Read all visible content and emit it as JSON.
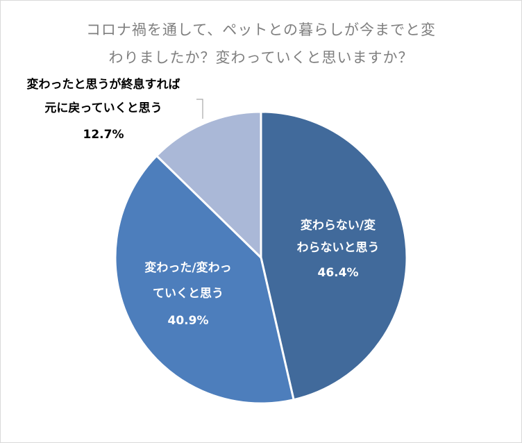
{
  "chart_data": {
    "type": "pie",
    "title_lines": [
      "コロナ禍を通して、ペットとの暮らしが今までと変",
      "わりましたか？変わっていくと思いますか？"
    ],
    "slices": [
      {
        "label_lines": [
          "変わらない/変",
          "わらないと思う"
        ],
        "value": 46.4,
        "value_label": "46.4%",
        "color": "#416a9b"
      },
      {
        "label_lines": [
          "変わった/変わっ",
          "ていくと思う"
        ],
        "value": 40.9,
        "value_label": "40.9%",
        "color": "#4d7ebc"
      },
      {
        "label_lines": [
          "変わったと思うが終息すれば",
          "元に戻っていくと思う"
        ],
        "value": 12.7,
        "value_label": "12.7%",
        "color": "#aab8d7"
      }
    ],
    "start_angle_deg": 0,
    "direction": "clockwise",
    "slice_border_color": "#ffffff",
    "label_text_color_inside": "#ffffff",
    "label_text_color_outside": "#000000",
    "leader_line_color": "#a6a6a6",
    "legend": "none"
  }
}
